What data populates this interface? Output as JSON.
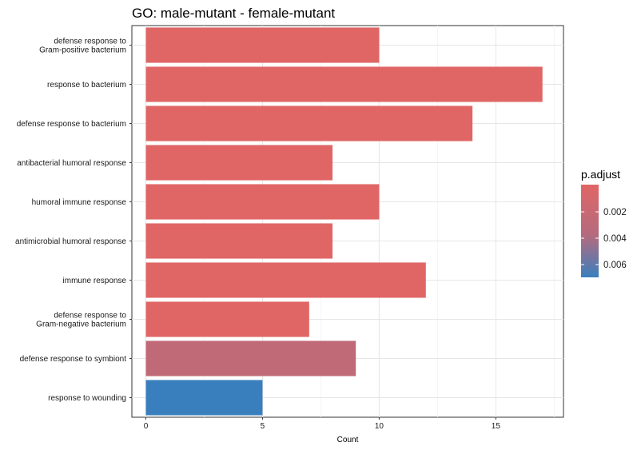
{
  "chart_data": {
    "type": "bar",
    "orientation": "horizontal",
    "title": "GO: male-mutant - female-mutant",
    "xlabel": "Count",
    "ylabel": "",
    "xlim": [
      -0.6,
      17.9
    ],
    "xticks": [
      0,
      5,
      10,
      15
    ],
    "grid": true,
    "categories": [
      "defense response to\nGram-positive bacterium",
      "response to bacterium",
      "defense response to bacterium",
      "antibacterial humoral response",
      "humoral immune response",
      "antimicrobial humoral response",
      "immune response",
      "defense response to\nGram-negative bacterium",
      "defense response to symbiont",
      "response to wounding"
    ],
    "values": [
      10,
      17,
      14,
      8,
      10,
      8,
      12,
      7,
      9,
      5
    ],
    "bar_colors": [
      "#e06666",
      "#e06666",
      "#e06666",
      "#e06666",
      "#e06666",
      "#e06666",
      "#e06666",
      "#e06666",
      "#c06a78",
      "#3a7fbd"
    ],
    "legend": {
      "title": "p.adjust",
      "position": "right",
      "labels": [
        "0.002",
        "0.004",
        "0.006"
      ],
      "gradient_colors": [
        "#e06666",
        "#3a7fbd"
      ]
    }
  }
}
